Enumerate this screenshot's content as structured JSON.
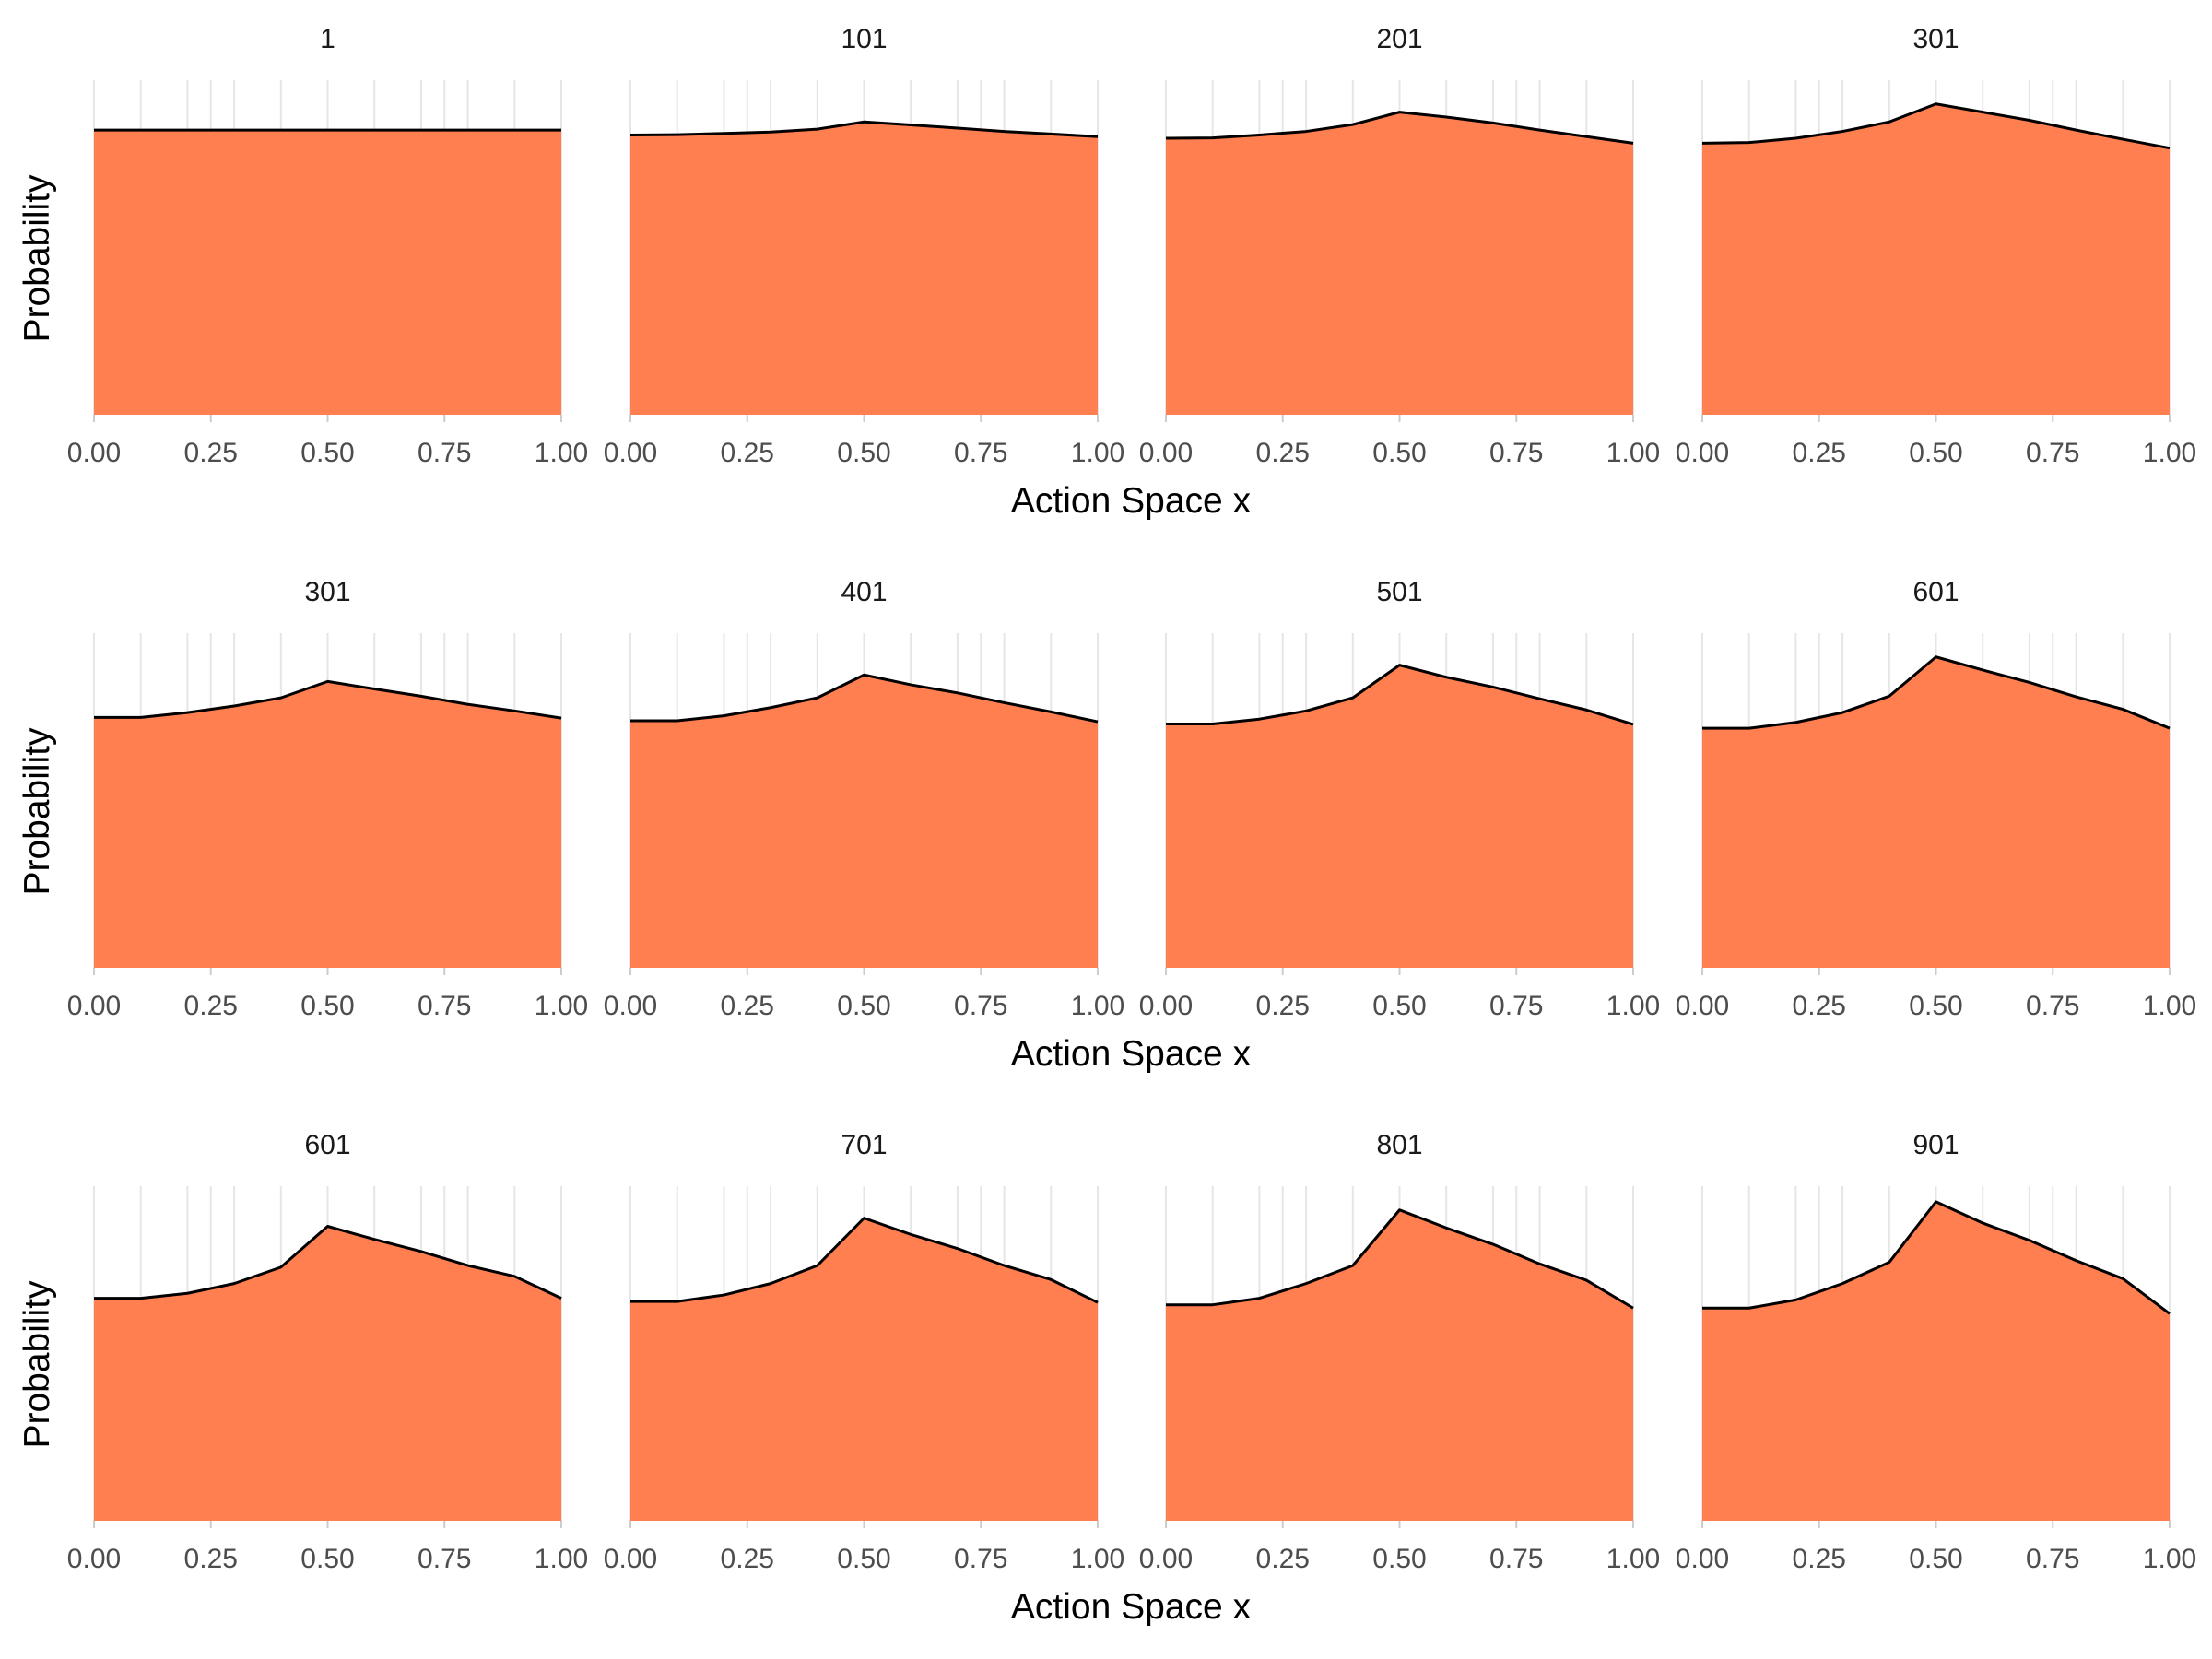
{
  "chart_data": {
    "type": "area",
    "fill_color": "#FF7F50",
    "line_color": "#000000",
    "grid": true,
    "x": [
      0.0,
      0.1,
      0.2,
      0.3,
      0.4,
      0.5,
      0.6,
      0.7,
      0.8,
      0.9,
      1.0
    ],
    "x_ticks": [
      "0.00",
      "0.25",
      "0.50",
      "0.75",
      "1.00"
    ],
    "xlim": [
      0,
      1
    ],
    "xlabel": "Action Space x",
    "ylabel": "Probability",
    "rows": [
      {
        "panels": [
          {
            "title": "1",
            "values": [
              0.87,
              0.87,
              0.87,
              0.87,
              0.87,
              0.87,
              0.87,
              0.87,
              0.87,
              0.87,
              0.87
            ]
          },
          {
            "title": "101",
            "values": [
              0.855,
              0.856,
              0.86,
              0.864,
              0.873,
              0.895,
              0.886,
              0.876,
              0.866,
              0.858,
              0.85
            ]
          },
          {
            "title": "201",
            "values": [
              0.845,
              0.846,
              0.855,
              0.866,
              0.887,
              0.925,
              0.91,
              0.892,
              0.87,
              0.85,
              0.83
            ]
          },
          {
            "title": "301",
            "values": [
              0.83,
              0.832,
              0.845,
              0.866,
              0.895,
              0.95,
              0.925,
              0.9,
              0.87,
              0.842,
              0.815
            ]
          }
        ]
      },
      {
        "panels": [
          {
            "title": "301",
            "values": [
              0.765,
              0.765,
              0.78,
              0.8,
              0.825,
              0.875,
              0.852,
              0.83,
              0.805,
              0.785,
              0.763
            ]
          },
          {
            "title": "401",
            "values": [
              0.755,
              0.755,
              0.77,
              0.795,
              0.825,
              0.895,
              0.865,
              0.84,
              0.81,
              0.782,
              0.752
            ]
          },
          {
            "title": "501",
            "values": [
              0.745,
              0.745,
              0.76,
              0.785,
              0.825,
              0.925,
              0.888,
              0.858,
              0.822,
              0.788,
              0.744
            ]
          },
          {
            "title": "601",
            "values": [
              0.732,
              0.732,
              0.75,
              0.78,
              0.83,
              0.95,
              0.91,
              0.872,
              0.828,
              0.79,
              0.732
            ]
          }
        ]
      },
      {
        "panels": [
          {
            "title": "601",
            "values": [
              0.68,
              0.68,
              0.695,
              0.725,
              0.775,
              0.9,
              0.86,
              0.823,
              0.78,
              0.747,
              0.68
            ]
          },
          {
            "title": "701",
            "values": [
              0.67,
              0.67,
              0.69,
              0.725,
              0.78,
              0.925,
              0.875,
              0.832,
              0.78,
              0.737,
              0.667
            ]
          },
          {
            "title": "801",
            "values": [
              0.66,
              0.66,
              0.68,
              0.725,
              0.78,
              0.95,
              0.895,
              0.845,
              0.785,
              0.735,
              0.65
            ]
          },
          {
            "title": "901",
            "values": [
              0.65,
              0.65,
              0.675,
              0.725,
              0.79,
              0.975,
              0.91,
              0.857,
              0.795,
              0.74,
              0.633
            ]
          }
        ]
      }
    ]
  }
}
